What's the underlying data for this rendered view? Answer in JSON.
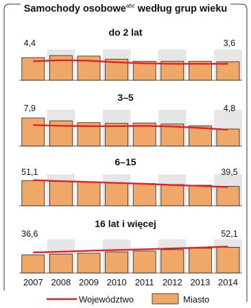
{
  "chart_data": {
    "type": "bar",
    "title": "Samochody osobowe",
    "title_superscript": "abc",
    "title_suffix": "według grup wieku",
    "categories": [
      "2007",
      "2008",
      "2009",
      "2010",
      "2011",
      "2012",
      "2013",
      "2014"
    ],
    "legend": {
      "line_label": "Województwo",
      "bar_label": "Miasto",
      "placement": "bottom"
    },
    "colors": {
      "bar": "#f0a868",
      "bar_border": "#222222",
      "line": "#e0202a",
      "shade": "#e6e6e6"
    },
    "panels": [
      {
        "label": "do 2 lat",
        "start_label": "4,4",
        "end_label": "3,6",
        "bars": [
          4.4,
          4.8,
          4.7,
          4.1,
          3.7,
          3.7,
          3.7,
          3.6
        ],
        "line": [
          3.7,
          3.9,
          3.8,
          3.5,
          3.3,
          3.2,
          3.2,
          3.2
        ],
        "ymax": 6.0
      },
      {
        "label": "3–5",
        "start_label": "7,9",
        "end_label": "4,8",
        "bars": [
          7.9,
          7.1,
          6.6,
          6.4,
          6.5,
          6.2,
          5.7,
          4.8
        ],
        "line": [
          5.9,
          5.7,
          5.6,
          5.6,
          5.7,
          5.5,
          5.1,
          4.6
        ],
        "ymax": 10.2
      },
      {
        "label": "6–15",
        "start_label": "51,1",
        "end_label": "39,5",
        "bars": [
          51.1,
          49.3,
          48.0,
          46.5,
          45.1,
          43.1,
          41.8,
          39.5
        ],
        "line": [
          52.0,
          50.0,
          48.3,
          46.3,
          44.6,
          42.2,
          40.2,
          38.0
        ],
        "ymax": 64.0
      },
      {
        "label": "16 lat i więcej",
        "start_label": "36,6",
        "end_label": "52,1",
        "bars": [
          36.6,
          38.4,
          40.2,
          42.8,
          44.6,
          47.3,
          50.1,
          52.1
        ],
        "line": [
          41.5,
          43.1,
          45.0,
          46.6,
          48.0,
          49.7,
          51.3,
          53.6
        ],
        "ymax": 68.0
      }
    ]
  }
}
